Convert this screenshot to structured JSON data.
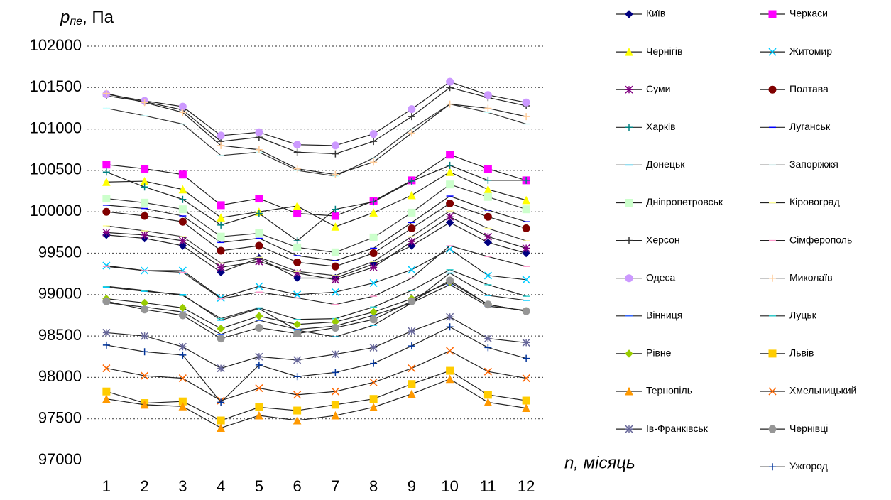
{
  "chart_data": {
    "type": "line",
    "ylabel": {
      "symbol": "p",
      "subscript": "пе",
      "unit": ", Па"
    },
    "xlabel": "n, місяць",
    "categories": [
      "1",
      "2",
      "3",
      "4",
      "5",
      "6",
      "7",
      "8",
      "9",
      "10",
      "11",
      "12"
    ],
    "ylim": [
      97000,
      102000
    ],
    "yticks": [
      97000,
      97500,
      98000,
      98500,
      99000,
      99500,
      100000,
      100500,
      101000,
      101500,
      102000
    ],
    "grid": true,
    "legend": "right",
    "series": [
      {
        "name": "Київ",
        "color": "#000080",
        "marker": "diamond",
        "values": [
          99720,
          99680,
          99590,
          99270,
          99440,
          99200,
          99200,
          99370,
          99590,
          99870,
          99630,
          99500
        ]
      },
      {
        "name": "Черкаси",
        "color": "#ff00ff",
        "marker": "square",
        "values": [
          100570,
          100520,
          100450,
          100080,
          100160,
          99980,
          99950,
          100130,
          100380,
          100690,
          100520,
          100380
        ]
      },
      {
        "name": "Чернігів",
        "color": "#ffff00",
        "marker": "triangle",
        "values": [
          100360,
          100370,
          100270,
          99930,
          100000,
          100070,
          99820,
          99990,
          100200,
          100480,
          100270,
          100140
        ]
      },
      {
        "name": "Житомир",
        "color": "#00ccff",
        "marker": "x",
        "values": [
          99350,
          99290,
          99290,
          98960,
          99100,
          99000,
          99030,
          99140,
          99300,
          99550,
          99230,
          99180
        ]
      },
      {
        "name": "Суми",
        "color": "#800080",
        "marker": "star",
        "values": [
          99750,
          99720,
          99650,
          99330,
          99400,
          99260,
          99180,
          99330,
          99640,
          99940,
          99700,
          99560
        ]
      },
      {
        "name": "Полтава",
        "color": "#800000",
        "marker": "circle",
        "values": [
          100000,
          99950,
          99880,
          99530,
          99590,
          99390,
          99340,
          99500,
          99800,
          100100,
          99940,
          99800
        ]
      },
      {
        "name": "Харків",
        "color": "#008080",
        "marker": "plus",
        "values": [
          100480,
          100300,
          100150,
          99840,
          99980,
          99650,
          100030,
          100120,
          100370,
          100560,
          100380,
          100380
        ]
      },
      {
        "name": "Луганськ",
        "color": "#0000ff",
        "marker": "dash",
        "values": [
          100080,
          100040,
          99950,
          99630,
          99680,
          99470,
          99410,
          99560,
          99870,
          100190,
          100020,
          99880
        ]
      },
      {
        "name": "Донецьк",
        "color": "#00ccff",
        "marker": "dash",
        "values": [
          99090,
          99040,
          99000,
          98690,
          98830,
          98570,
          98490,
          98630,
          98900,
          99260,
          98990,
          98930
        ]
      },
      {
        "name": "Запоріжжя",
        "color": "#ccffff",
        "marker": "dash",
        "values": [
          101250,
          101160,
          101060,
          100680,
          100720,
          100500,
          100430,
          100650,
          101000,
          101300,
          101200,
          101060
        ]
      },
      {
        "name": "Дніпропетровськ",
        "color": "#ccffcc",
        "marker": "square",
        "values": [
          100160,
          100110,
          100030,
          99700,
          99740,
          99570,
          99510,
          99690,
          99990,
          100330,
          100180,
          100030
        ]
      },
      {
        "name": "Кіровоград",
        "color": "#ffff99",
        "marker": "dash",
        "values": [
          99830,
          99770,
          99700,
          99380,
          99450,
          99280,
          99230,
          99400,
          99700,
          100010,
          99800,
          99650
        ]
      },
      {
        "name": "Херсон",
        "color": "#333333",
        "marker": "plus",
        "values": [
          101400,
          101330,
          101230,
          100850,
          100900,
          100720,
          100700,
          100850,
          101150,
          101500,
          101380,
          101280
        ]
      },
      {
        "name": "Сімферополь",
        "color": "#ff99cc",
        "marker": "dash",
        "values": [
          99340,
          99290,
          99270,
          98950,
          99030,
          98960,
          98880,
          98980,
          99200,
          99590,
          99460,
          99340
        ]
      },
      {
        "name": "Одеса",
        "color": "#cc99ff",
        "marker": "circle",
        "values": [
          101420,
          101340,
          101270,
          100920,
          100960,
          100810,
          100800,
          100940,
          101240,
          101570,
          101410,
          101320
        ]
      },
      {
        "name": "Миколаїв",
        "color": "#ffcc99",
        "marker": "plus",
        "values": [
          101430,
          101320,
          101200,
          100800,
          100750,
          100520,
          100450,
          100600,
          100950,
          101300,
          101250,
          101150
        ]
      },
      {
        "name": "Вінниця",
        "color": "#3366ff",
        "marker": "dash",
        "values": [
          98900,
          98850,
          98790,
          98520,
          98690,
          98580,
          98620,
          98750,
          98900,
          99120,
          98860,
          98810
        ]
      },
      {
        "name": "Луцьк",
        "color": "#33cccc",
        "marker": "dash",
        "values": [
          99100,
          99050,
          98990,
          98710,
          98840,
          98700,
          98710,
          98850,
          99050,
          99300,
          99120,
          98980
        ]
      },
      {
        "name": "Рівне",
        "color": "#99cc00",
        "marker": "diamond",
        "values": [
          98950,
          98900,
          98840,
          98590,
          98740,
          98640,
          98670,
          98790,
          98950,
          99150,
          98880,
          98800
        ]
      },
      {
        "name": "Львів",
        "color": "#ffcc00",
        "marker": "square",
        "values": [
          97830,
          97690,
          97710,
          97480,
          97640,
          97600,
          97670,
          97740,
          97920,
          98080,
          97790,
          97720
        ]
      },
      {
        "name": "Тернопіль",
        "color": "#ff9900",
        "marker": "triangle",
        "values": [
          97740,
          97670,
          97650,
          97390,
          97540,
          97480,
          97540,
          97640,
          97800,
          97980,
          97700,
          97630
        ]
      },
      {
        "name": "Хмельницький",
        "color": "#ff6600",
        "marker": "x",
        "values": [
          98110,
          98020,
          97990,
          97720,
          97870,
          97790,
          97830,
          97940,
          98110,
          98320,
          98070,
          97990
        ]
      },
      {
        "name": "Ів-Франківськ",
        "color": "#666699",
        "marker": "star",
        "values": [
          98540,
          98500,
          98370,
          98110,
          98250,
          98210,
          98280,
          98360,
          98560,
          98730,
          98470,
          98420
        ]
      },
      {
        "name": "Чернівці",
        "color": "#969696",
        "marker": "circle",
        "values": [
          98920,
          98820,
          98750,
          98470,
          98600,
          98530,
          98600,
          98700,
          98920,
          99170,
          98880,
          98800
        ]
      },
      {
        "name": "Ужгород",
        "color": "#003399",
        "marker": "plus",
        "values": [
          98390,
          98310,
          98270,
          97700,
          98150,
          98010,
          98060,
          98170,
          98380,
          98610,
          98360,
          98230
        ]
      }
    ]
  }
}
